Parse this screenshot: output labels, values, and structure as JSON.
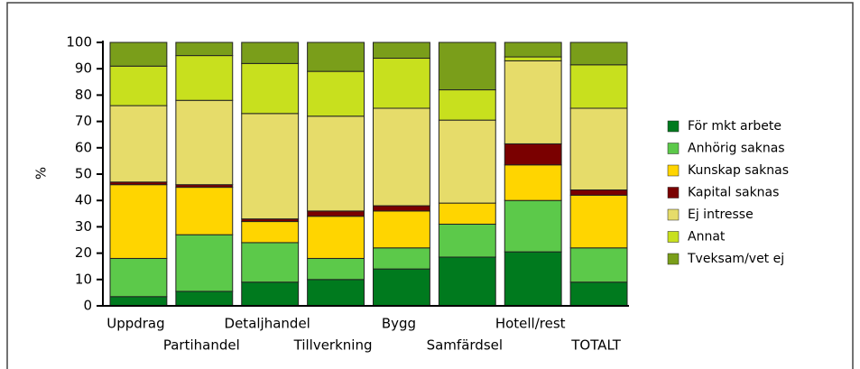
{
  "chart_data": {
    "type": "stacked_bar",
    "y_label": "%",
    "categories": [
      "Uppdrag",
      "Partihandel",
      "Detaljhandel",
      "Tillverkning",
      "Bygg",
      "Samfärdsel",
      "Hotell/rest",
      "TOTALT"
    ],
    "series": [
      {
        "name": "För mkt arbete",
        "color": "#007a1e",
        "values": [
          3.5,
          5.5,
          9,
          10,
          14,
          18.5,
          20.5,
          9
        ]
      },
      {
        "name": "Anhörig saknas",
        "color": "#5cc94a",
        "values": [
          14.5,
          21.5,
          15,
          8,
          8,
          12.5,
          19.5,
          13
        ]
      },
      {
        "name": "Kunskap saknas",
        "color": "#ffd500",
        "values": [
          28,
          18,
          8,
          16,
          14,
          8,
          13.5,
          20
        ]
      },
      {
        "name": "Kapital saknas",
        "color": "#7a0000",
        "values": [
          1,
          1,
          1,
          2,
          2,
          0,
          8,
          2
        ]
      },
      {
        "name": "Ej intresse",
        "color": "#e6dc6a",
        "values": [
          29,
          32,
          40,
          36,
          37,
          31.5,
          31.5,
          31
        ]
      },
      {
        "name": "Annat",
        "color": "#c8e01e",
        "values": [
          15,
          17,
          19,
          17,
          19,
          11.5,
          1.5,
          16.5
        ]
      },
      {
        "name": "Tveksam/vet ej",
        "color": "#7a9e1a",
        "values": [
          9,
          5,
          8,
          11,
          6,
          18,
          5.5,
          8.5
        ]
      }
    ],
    "ylim": [
      0,
      100
    ],
    "yticks": [
      0,
      10,
      20,
      30,
      40,
      50,
      60,
      70,
      80,
      90,
      100
    ],
    "legend": "right"
  }
}
